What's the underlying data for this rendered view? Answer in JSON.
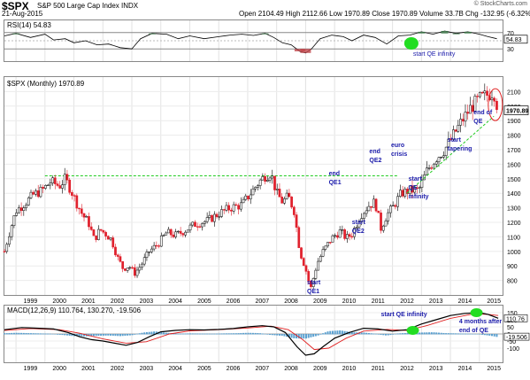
{
  "header": {
    "symbol": "$SPX",
    "name": "S&P 500 Large Cap Index INDX",
    "date": "21-Aug-2015",
    "quote": "Open 2104.49  High 2112.66  Low 1970.89  Close 1970.89  Volume 33.7B  Chg -132.95 (-6.32%) ▼",
    "copyright": "© StockCharts.com"
  },
  "colors": {
    "up_candle": "#000000",
    "down_candle": "#e0202c",
    "support_line": "#22cc22",
    "annotation": "#1a1aaa",
    "highlight_green": "#22dd22",
    "highlight_red": "#e02020",
    "ma_red": "#e02020",
    "histogram": "#5aa0d0"
  },
  "chart_data": [
    {
      "type": "line",
      "title": "RSI(14) 54.83",
      "legend": "RSI(14) 54.83",
      "ylim": [
        0,
        100
      ],
      "yticks": [
        "70",
        "50",
        "30"
      ],
      "last_label": "54.83",
      "x": [
        1998.6,
        1999.0,
        1999.5,
        2000.0,
        2000.3,
        2000.7,
        2001.0,
        2001.4,
        2001.8,
        2002.2,
        2002.6,
        2003.0,
        2003.3,
        2003.7,
        2004.2,
        2004.6,
        2005.0,
        2005.5,
        2006.0,
        2006.4,
        2006.8,
        2007.2,
        2007.6,
        2007.9,
        2008.2,
        2008.5,
        2008.8,
        2009.0,
        2009.2,
        2009.5,
        2009.9,
        2010.3,
        2010.6,
        2011.0,
        2011.4,
        2011.8,
        2012.2,
        2012.6,
        2013.0,
        2013.4,
        2013.8,
        2014.2,
        2014.6,
        2015.0,
        2015.3,
        2015.6
      ],
      "values": [
        62,
        68,
        58,
        66,
        52,
        55,
        45,
        50,
        40,
        42,
        33,
        30,
        55,
        68,
        66,
        55,
        62,
        55,
        60,
        64,
        66,
        63,
        68,
        58,
        45,
        40,
        24,
        20,
        30,
        55,
        64,
        60,
        50,
        64,
        58,
        42,
        62,
        64,
        72,
        66,
        74,
        68,
        72,
        66,
        60,
        55
      ]
    },
    {
      "type": "line",
      "title": "$SPX (Monthly) 1970.89",
      "legend": "$SPX (Monthly) 1970.89",
      "xlabel": "",
      "ylabel": "",
      "xlim": [
        1998.6,
        2015.8
      ],
      "ylim": [
        700,
        2200
      ],
      "yticks": [
        "2100",
        "2000",
        "1900",
        "1800",
        "1700",
        "1600",
        "1500",
        "1400",
        "1300",
        "1200",
        "1100",
        "1000",
        "900",
        "800"
      ],
      "xticks": [
        "1999",
        "2000",
        "2001",
        "2002",
        "2003",
        "2004",
        "2005",
        "2006",
        "2007",
        "2008",
        "2009",
        "2010",
        "2011",
        "2012",
        "2013",
        "2014",
        "2015"
      ],
      "last_label": "1970.89",
      "x": [
        1998.6,
        1998.8,
        1999.0,
        1999.3,
        1999.6,
        1999.9,
        2000.2,
        2000.5,
        2000.7,
        2000.9,
        2001.1,
        2001.3,
        2001.5,
        2001.7,
        2001.9,
        2002.1,
        2002.3,
        2002.5,
        2002.7,
        2002.9,
        2003.1,
        2003.3,
        2003.6,
        2003.9,
        2004.2,
        2004.5,
        2004.8,
        2005.2,
        2005.6,
        2006.0,
        2006.4,
        2006.8,
        2007.1,
        2007.4,
        2007.6,
        2007.8,
        2008.0,
        2008.2,
        2008.4,
        2008.6,
        2008.8,
        2009.0,
        2009.17,
        2009.4,
        2009.6,
        2009.9,
        2010.2,
        2010.4,
        2010.6,
        2010.9,
        2011.2,
        2011.4,
        2011.6,
        2011.8,
        2012.0,
        2012.3,
        2012.6,
        2012.9,
        2013.2,
        2013.5,
        2013.8,
        2014.1,
        2014.4,
        2014.7,
        2015.0,
        2015.3,
        2015.5,
        2015.65
      ],
      "values": [
        1000,
        1150,
        1280,
        1330,
        1390,
        1420,
        1480,
        1450,
        1500,
        1420,
        1330,
        1250,
        1200,
        1080,
        1150,
        1120,
        1080,
        960,
        880,
        900,
        850,
        900,
        1000,
        1050,
        1130,
        1110,
        1140,
        1190,
        1210,
        1260,
        1300,
        1320,
        1400,
        1480,
        1520,
        1540,
        1400,
        1340,
        1380,
        1280,
        1000,
        880,
        740,
        920,
        1000,
        1090,
        1140,
        1090,
        1120,
        1250,
        1320,
        1340,
        1160,
        1250,
        1300,
        1400,
        1420,
        1420,
        1560,
        1640,
        1700,
        1800,
        1900,
        1990,
        2050,
        2080,
        2100,
        1970.89
      ],
      "support_line": 1520
    },
    {
      "type": "line",
      "title": "MACD(12,26,9) 110.764, 130.270, -19.506",
      "legend": "MACD(12,26,9) 110.764, 130.270, -19.506",
      "ylim": [
        -200,
        200
      ],
      "yticks": [
        "150",
        "100",
        "50",
        "0",
        "-50",
        "-100"
      ],
      "last_labels": [
        "110.76",
        "-19.506"
      ],
      "series": [
        {
          "x": [
            1998.6,
            1999.2,
            1999.8,
            2000.3,
            2000.8,
            2001.2,
            2001.6,
            2002.0,
            2002.4,
            2002.8,
            2003.2,
            2003.6,
            2004.0,
            2004.5,
            2005.0,
            2005.5,
            2006.0,
            2006.5,
            2007.0,
            2007.5,
            2007.9,
            2008.3,
            2008.7,
            2009.0,
            2009.3,
            2009.6,
            2010.0,
            2010.5,
            2011.0,
            2011.5,
            2012.0,
            2012.5,
            2013.0,
            2013.5,
            2014.0,
            2014.5,
            2015.0,
            2015.3,
            2015.65
          ],
          "values": [
            30,
            45,
            40,
            35,
            10,
            -20,
            -40,
            -50,
            -65,
            -80,
            -60,
            -20,
            15,
            25,
            30,
            28,
            32,
            38,
            50,
            58,
            50,
            10,
            -90,
            -150,
            -140,
            -90,
            -30,
            10,
            40,
            35,
            20,
            30,
            70,
            100,
            130,
            145,
            150,
            138,
            110.764
          ]
        },
        {
          "x": [
            1998.6,
            1999.5,
            2000.5,
            2001.2,
            2002.0,
            2002.8,
            2003.5,
            2004.3,
            2005.0,
            2006.0,
            2007.0,
            2007.8,
            2008.4,
            2008.9,
            2009.3,
            2009.8,
            2010.4,
            2011.0,
            2011.8,
            2012.5,
            2013.2,
            2014.0,
            2014.8,
            2015.3,
            2015.65
          ],
          "values": [
            25,
            38,
            30,
            5,
            -35,
            -65,
            -55,
            0,
            22,
            30,
            42,
            55,
            30,
            -40,
            -110,
            -100,
            -30,
            20,
            32,
            25,
            60,
            110,
            142,
            138,
            130.27
          ]
        }
      ],
      "histogram_x": [
        1998.6,
        1999.0,
        1999.4,
        1999.8,
        2000.2,
        2000.6,
        2001.0,
        2001.4,
        2001.8,
        2002.2,
        2002.6,
        2003.0,
        2003.4,
        2003.8,
        2004.2,
        2004.6,
        2005.0,
        2005.4,
        2005.8,
        2006.2,
        2006.6,
        2007.0,
        2007.4,
        2007.8,
        2008.2,
        2008.6,
        2009.0,
        2009.4,
        2009.8,
        2010.2,
        2010.6,
        2011.0,
        2011.4,
        2011.8,
        2012.2,
        2012.6,
        2013.0,
        2013.4,
        2013.8,
        2014.2,
        2014.6,
        2015.0,
        2015.4,
        2015.65
      ],
      "histogram": [
        5,
        8,
        6,
        4,
        2,
        -4,
        -12,
        -14,
        -10,
        -8,
        -12,
        -6,
        10,
        18,
        8,
        2,
        4,
        3,
        2,
        4,
        5,
        8,
        6,
        -4,
        -10,
        -28,
        -30,
        -10,
        20,
        25,
        12,
        10,
        2,
        -8,
        4,
        8,
        10,
        12,
        6,
        4,
        2,
        0,
        -10,
        -19.506
      ]
    }
  ],
  "annotations": {
    "rsi_qe": "start QE infinity",
    "start_qe1": [
      "start",
      "QE1"
    ],
    "end_qe1": [
      "end",
      "QE1"
    ],
    "start_qe2": [
      "start",
      "QE2"
    ],
    "end_qe2": [
      "end",
      "QE2"
    ],
    "euro_crisis": [
      "euro",
      "crisis"
    ],
    "start_qe_inf": [
      "start",
      "QE",
      "infinity"
    ],
    "start_tapering": [
      "start",
      "tapering"
    ],
    "end_of_qe": [
      "end of",
      "QE"
    ],
    "macd_qe": "start QE infinity",
    "four_months": [
      "4 months after",
      "end of QE"
    ]
  }
}
